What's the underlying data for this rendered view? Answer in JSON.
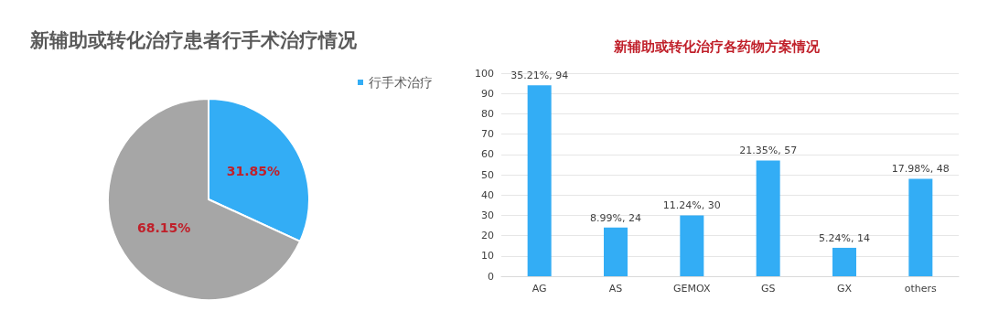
{
  "chart_data": [
    {
      "type": "pie",
      "title": "新辅助或转化治疗患者行手术治疗情况",
      "categories": [
        "行手术治疗",
        null
      ],
      "values": [
        31.85,
        68.15
      ],
      "colors": [
        "#33adf5",
        "#a6a6a6"
      ],
      "value_labels": [
        "31.85%",
        "68.15%"
      ],
      "legend": "top right"
    },
    {
      "type": "bar",
      "title": "新辅助或转化治疗各药物方案情况",
      "categories": [
        "AG",
        "AS",
        "GEMOX",
        "GS",
        "GX",
        "others"
      ],
      "values": [
        94,
        24,
        30,
        57,
        14,
        48
      ],
      "color": "#33adf5",
      "value_labels": [
        "35.21%, 94",
        "8.99%, 24",
        "11.24%, 30",
        "21.35%, 57",
        "5.24%, 14",
        "17.98%, 48"
      ],
      "ylim": [
        0,
        100
      ],
      "yticks": [
        0,
        10,
        20,
        30,
        40,
        50,
        60,
        70,
        80,
        90,
        100
      ],
      "grid": "y"
    }
  ]
}
